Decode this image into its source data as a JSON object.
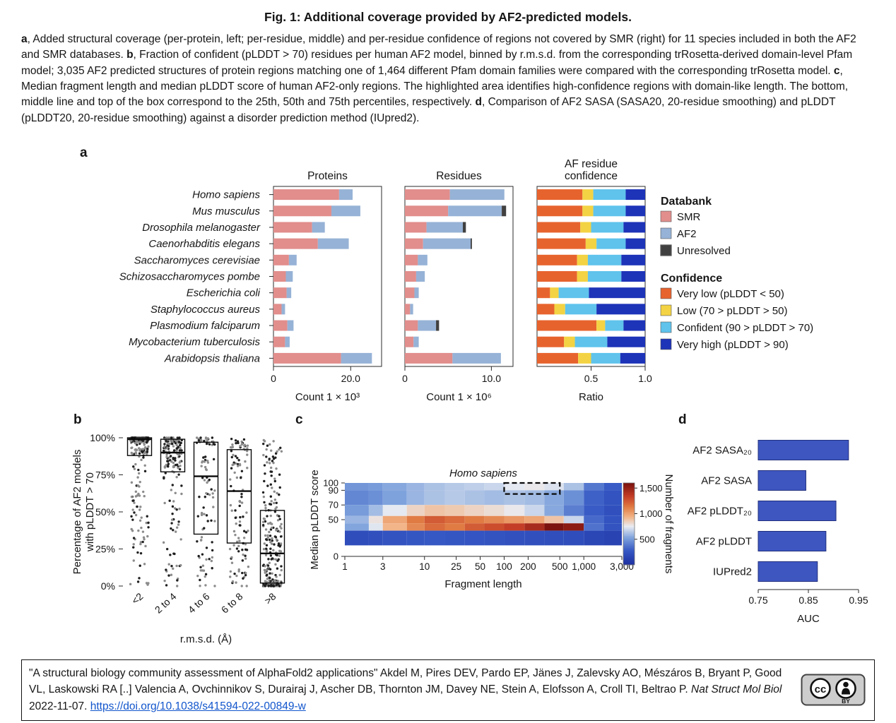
{
  "title": "Fig. 1: Additional coverage provided by AF2-predicted models.",
  "panels": {
    "a": {
      "label": "a"
    },
    "b": {
      "label": "b"
    },
    "c": {
      "label": "c"
    },
    "d": {
      "label": "d"
    }
  },
  "caption_segments": [
    {
      "text": "a",
      "bold": true
    },
    {
      "text": ", Added structural coverage (per-protein, left; per-residue, middle) and per-residue confidence of regions not covered by SMR (right) for 11 species included in both the AF2 and SMR databases. ",
      "bold": false
    },
    {
      "text": "b",
      "bold": true
    },
    {
      "text": ", Fraction of confident (pLDDT > 70) residues per human AF2 model, binned by r.m.s.d. from the corresponding trRosetta-derived domain-level Pfam model; 3,035 AF2 predicted structures of protein regions matching one of 1,464 different Pfam domain families were compared with the corresponding trRosetta model. ",
      "bold": false
    },
    {
      "text": "c",
      "bold": true
    },
    {
      "text": ", Median fragment length and median pLDDT score of human AF2-only regions. The highlighted area identifies high-confidence regions with domain-like length. The bottom, middle line and top of the box correspond to the 25th, 50th and 75th percentiles, respectively. ",
      "bold": false
    },
    {
      "text": "d",
      "bold": true
    },
    {
      "text": ", Comparison of AF2 SASA (SASA20, 20-residue smoothing) and pLDDT (pLDDT20, 20-residue smoothing) against a disorder prediction method (IUpred2).",
      "bold": false
    }
  ],
  "colors": {
    "smr": "#E18E8C",
    "af2": "#96B2D6",
    "unresolved": "#404040",
    "very_low": "#E7632E",
    "low": "#F3D343",
    "confident": "#5FC3EC",
    "very_high": "#1D33B8",
    "bar_blue": "#3D56C0",
    "link": "#1155CC"
  },
  "chart_data": {
    "panel_a": {
      "type": "bar",
      "orientation": "horizontal",
      "species": [
        "Homo sapiens",
        "Mus musculus",
        "Drosophila melanogaster",
        "Caenorhabditis elegans",
        "Saccharomyces cerevisiae",
        "Schizosaccharomyces pombe",
        "Escherichia coli",
        "Staphylococcus aureus",
        "Plasmodium falciparum",
        "Mycobacterium tuberculosis",
        "Arabidopsis thaliana"
      ],
      "charts": {
        "proteins": {
          "title_lines": [
            "Proteins"
          ],
          "xlabel": "Count  1 × 10³",
          "xlim": [
            0,
            28
          ],
          "xticks": [
            {
              "value": 0,
              "label": "0"
            },
            {
              "value": 20,
              "label": "20.0"
            }
          ],
          "series": [
            {
              "name": "SMR",
              "color_key": "smr",
              "values": [
                17,
                15,
                10,
                11.5,
                4,
                3.2,
                3.4,
                2.1,
                3.6,
                3,
                17.5
              ]
            },
            {
              "name": "AF2",
              "color_key": "af2",
              "values": [
                3.5,
                7.5,
                3.3,
                8,
                2,
                1.8,
                1.2,
                0.9,
                1.6,
                1.2,
                8
              ]
            },
            {
              "name": "Unresolved",
              "color_key": "unresolved",
              "values": [
                0,
                0,
                0,
                0,
                0,
                0,
                0,
                0,
                0,
                0,
                0
              ]
            }
          ]
        },
        "residues": {
          "title_lines": [
            "Residues"
          ],
          "xlabel": "Count  1 × 10⁶",
          "xlim": [
            0,
            12.5
          ],
          "xticks": [
            {
              "value": 0,
              "label": "0"
            },
            {
              "value": 10,
              "label": "10.0"
            }
          ],
          "series": [
            {
              "name": "SMR",
              "color_key": "smr",
              "values": [
                5.2,
                5.0,
                2.5,
                2.1,
                1.5,
                1.3,
                1.1,
                0.6,
                1.5,
                1.0,
                5.5
              ]
            },
            {
              "name": "AF2",
              "color_key": "af2",
              "values": [
                6.3,
                6.2,
                4.2,
                5.5,
                1.1,
                1.0,
                0.5,
                0.35,
                2.1,
                0.6,
                5.6
              ]
            },
            {
              "name": "Unresolved",
              "color_key": "unresolved",
              "values": [
                0,
                0.5,
                0.35,
                0.15,
                0,
                0,
                0,
                0,
                0.35,
                0,
                0
              ]
            }
          ]
        },
        "confidence": {
          "title_lines": [
            "AF residue",
            "confidence"
          ],
          "xlabel": "Ratio",
          "xlim": [
            0,
            1
          ],
          "xticks": [
            {
              "value": 0.5,
              "label": "0.5"
            },
            {
              "value": 1,
              "label": "1.0"
            }
          ],
          "series": [
            {
              "name": "Very low",
              "color_key": "very_low",
              "values": [
                0.42,
                0.42,
                0.4,
                0.45,
                0.37,
                0.37,
                0.12,
                0.16,
                0.55,
                0.25,
                0.38
              ]
            },
            {
              "name": "Low",
              "color_key": "low",
              "values": [
                0.1,
                0.1,
                0.1,
                0.1,
                0.1,
                0.1,
                0.08,
                0.1,
                0.08,
                0.1,
                0.12
              ]
            },
            {
              "name": "Confident",
              "color_key": "confident",
              "values": [
                0.3,
                0.3,
                0.3,
                0.27,
                0.31,
                0.31,
                0.28,
                0.29,
                0.17,
                0.3,
                0.27
              ]
            },
            {
              "name": "Very high",
              "color_key": "very_high",
              "values": [
                0.18,
                0.18,
                0.2,
                0.18,
                0.22,
                0.22,
                0.52,
                0.45,
                0.2,
                0.35,
                0.23
              ]
            }
          ]
        }
      },
      "legend": {
        "groups": [
          {
            "title": "Databank",
            "items": [
              {
                "label": "SMR",
                "color_key": "smr"
              },
              {
                "label": "AF2",
                "color_key": "af2"
              },
              {
                "label": "Unresolved",
                "color_key": "unresolved"
              }
            ]
          },
          {
            "title": "Confidence",
            "items": [
              {
                "label": "Very low (pLDDT < 50)",
                "color_key": "very_low"
              },
              {
                "label": "Low (70 > pLDDT > 50)",
                "color_key": "low"
              },
              {
                "label": "Confident (90 > pLDDT > 70)",
                "color_key": "confident"
              },
              {
                "label": "Very high (pLDDT > 90)",
                "color_key": "very_high"
              }
            ]
          }
        ]
      }
    },
    "panel_b": {
      "type": "boxplot_scatter",
      "categories": [
        "<2",
        "2 to 4",
        "4 to 6",
        "6 to 8",
        ">8"
      ],
      "xlabel": "r.m.s.d. (Å)",
      "ylabel_lines": [
        "Percentage of AF2 models",
        "with pLDDT > 70"
      ],
      "yticks": [
        {
          "value": 0,
          "label": "0%"
        },
        {
          "value": 25,
          "label": "25%"
        },
        {
          "value": 50,
          "label": "50%"
        },
        {
          "value": 75,
          "label": "75%"
        },
        {
          "value": 100,
          "label": "100%"
        }
      ],
      "boxes": [
        {
          "category": "<2",
          "lo": 0,
          "q1": 88,
          "median": 99,
          "q3": 100,
          "hi": 100,
          "n_points": 260
        },
        {
          "category": "2 to 4",
          "lo": 0,
          "q1": 77,
          "median": 90,
          "q3": 99,
          "hi": 100,
          "n_points": 170
        },
        {
          "category": "4 to 6",
          "lo": 0,
          "q1": 35,
          "median": 74,
          "q3": 97,
          "hi": 100,
          "n_points": 95
        },
        {
          "category": "6 to 8",
          "lo": 0,
          "q1": 29,
          "median": 64,
          "q3": 92,
          "hi": 100,
          "n_points": 115
        },
        {
          "category": ">8",
          "lo": 0,
          "q1": 2,
          "median": 22,
          "q3": 51,
          "hi": 100,
          "n_points": 230
        }
      ]
    },
    "panel_c": {
      "type": "heatmap",
      "title": "Homo sapiens",
      "xlabel": "Fragment length",
      "ylabel": "Median pLDDT score",
      "x_scale": "log",
      "xticks": [
        {
          "value": 1,
          "label": "1"
        },
        {
          "value": 3,
          "label": "3"
        },
        {
          "value": 10,
          "label": "10"
        },
        {
          "value": 25,
          "label": "25"
        },
        {
          "value": 50,
          "label": "50"
        },
        {
          "value": 100,
          "label": "100"
        },
        {
          "value": 200,
          "label": "200"
        },
        {
          "value": 500,
          "label": "500"
        },
        {
          "value": 1000,
          "label": "1,000"
        },
        {
          "value": 3000,
          "label": "3,000"
        }
      ],
      "yticks": [
        {
          "value": 0,
          "label": "0"
        },
        {
          "value": 50,
          "label": "50"
        },
        {
          "value": 70,
          "label": "70"
        },
        {
          "value": 90,
          "label": "90"
        },
        {
          "value": 100,
          "label": "100"
        }
      ],
      "col_edges": [
        1,
        2,
        3,
        6,
        10,
        18,
        32,
        56,
        100,
        180,
        320,
        560,
        1000,
        1800,
        3000
      ],
      "rows": [
        {
          "range": [
            90,
            100
          ],
          "values": [
            500,
            520,
            560,
            600,
            640,
            660,
            680,
            700,
            760,
            780,
            740,
            640,
            400,
            300
          ]
        },
        {
          "range": [
            70,
            90
          ],
          "values": [
            450,
            480,
            540,
            600,
            640,
            660,
            640,
            620,
            640,
            620,
            560,
            480,
            320,
            260
          ]
        },
        {
          "range": [
            55,
            70
          ],
          "values": [
            520,
            620,
            760,
            850,
            900,
            880,
            850,
            820,
            780,
            700,
            560,
            420,
            300,
            240
          ]
        },
        {
          "range": [
            45,
            55
          ],
          "values": [
            600,
            800,
            1000,
            1150,
            1250,
            1200,
            1150,
            1100,
            1050,
            1000,
            900,
            700,
            350,
            260
          ]
        },
        {
          "range": [
            35,
            45
          ],
          "values": [
            550,
            750,
            950,
            1100,
            1200,
            1150,
            1250,
            1300,
            1350,
            1450,
            1600,
            1550,
            380,
            260
          ]
        },
        {
          "range": [
            15,
            35
          ],
          "values": [
            220,
            240,
            260,
            280,
            290,
            280,
            270,
            260,
            250,
            240,
            230,
            220,
            180,
            150
          ]
        }
      ],
      "highlight_box": {
        "x_range": [
          100,
          500
        ],
        "y_range": [
          85,
          100
        ]
      },
      "colorbar": {
        "label": "Number of fragments",
        "ticks": [
          {
            "value": 500,
            "label": "500"
          },
          {
            "value": 1000,
            "label": "1,000"
          },
          {
            "value": 1500,
            "label": "1,500"
          }
        ],
        "vmin": 0,
        "vmax": 1600
      },
      "colormap": [
        [
          0,
          "#1B2D9E"
        ],
        [
          0.18,
          "#3557C4"
        ],
        [
          0.34,
          "#7FA3DC"
        ],
        [
          0.48,
          "#E9ECF2"
        ],
        [
          0.6,
          "#F2B283"
        ],
        [
          0.72,
          "#E07A43"
        ],
        [
          0.85,
          "#C33B26"
        ],
        [
          1,
          "#7C130E"
        ]
      ]
    },
    "panel_d": {
      "type": "bar",
      "orientation": "horizontal",
      "categories": [
        "AF2 SASA₂₀",
        "AF2 SASA",
        "AF2 pLDDT₂₀",
        "AF2 pLDDT",
        "IUPred2"
      ],
      "values": [
        0.93,
        0.845,
        0.905,
        0.885,
        0.868
      ],
      "xlabel": "AUC",
      "xlim": [
        0.75,
        0.95
      ],
      "xticks": [
        {
          "value": 0.75,
          "label": "0.75"
        },
        {
          "value": 0.85,
          "label": "0.85"
        },
        {
          "value": 0.95,
          "label": "0.95"
        }
      ]
    }
  },
  "footer": {
    "citation_segments": [
      {
        "text": "\"A structural biology community assessment of AlphaFold2 applications\" Akdel M, Pires DEV, Pardo EP, Jänes J, Zalevsky AO, Mészáros B, Bryant P, Good VL, Laskowski RA [..] Valencia A, Ovchinnikov S, Durairaj J, Ascher DB, Thornton JM, Davey NE, Stein A, Elofsson A, Croll TI, Beltrao P. ",
        "style": "normal"
      },
      {
        "text": "Nat Struct Mol Biol",
        "style": "italic"
      },
      {
        "text": " 2022-11-07. ",
        "style": "normal"
      },
      {
        "text": "https://doi.org/10.1038/s41594-022-00849-w",
        "style": "link"
      }
    ],
    "badge": {
      "cc_text": "cc",
      "by_text": "BY",
      "license": "CC BY"
    }
  }
}
